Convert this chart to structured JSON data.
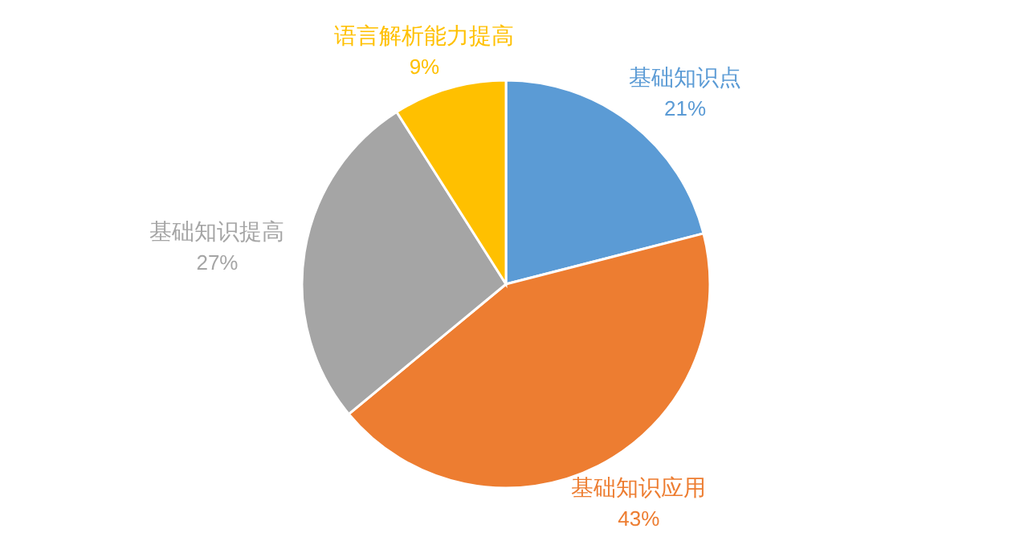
{
  "chart_data": {
    "type": "pie",
    "categories": [
      "基础知识点",
      "基础知识应用",
      "基础知识提高",
      "语言解析能力提高"
    ],
    "values": [
      21,
      43,
      27,
      9
    ],
    "colors": [
      "#5b9bd5",
      "#ed7d31",
      "#a5a5a5",
      "#ffc000"
    ],
    "value_labels": [
      "21%",
      "43%",
      "27%",
      "9%"
    ]
  }
}
